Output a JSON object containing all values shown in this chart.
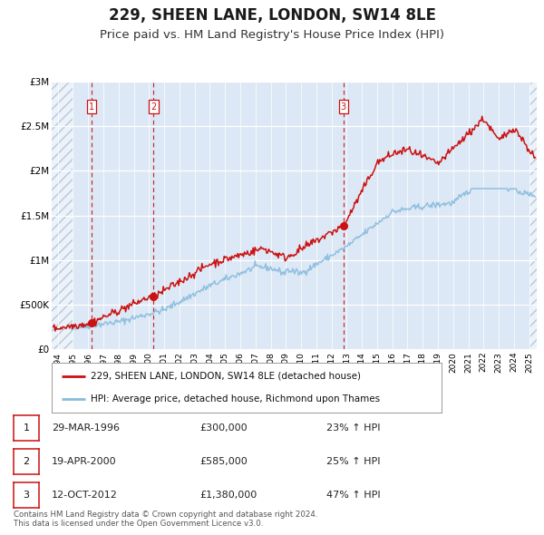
{
  "title": "229, SHEEN LANE, LONDON, SW14 8LE",
  "subtitle": "Price paid vs. HM Land Registry's House Price Index (HPI)",
  "title_fontsize": 12,
  "subtitle_fontsize": 9.5,
  "bg_color": "#f5f5f5",
  "plot_bg_color": "#dce8f5",
  "red_color": "#cc1111",
  "blue_color": "#88bbdd",
  "ylim": [
    0,
    3000000
  ],
  "yticks": [
    0,
    500000,
    1000000,
    1500000,
    2000000,
    2500000,
    3000000
  ],
  "ytick_labels": [
    "£0",
    "£500K",
    "£1M",
    "£1.5M",
    "£2M",
    "£2.5M",
    "£3M"
  ],
  "xlim_start": 1993.6,
  "xlim_end": 2025.5,
  "sale_dates": [
    1996.24,
    2000.3,
    2012.79
  ],
  "sale_prices": [
    300000,
    585000,
    1380000
  ],
  "sale_labels": [
    "1",
    "2",
    "3"
  ],
  "vline_dates": [
    1996.24,
    2000.3,
    2012.79
  ],
  "legend_label_red": "229, SHEEN LANE, LONDON, SW14 8LE (detached house)",
  "legend_label_blue": "HPI: Average price, detached house, Richmond upon Thames",
  "table_rows": [
    {
      "num": "1",
      "date": "29-MAR-1996",
      "price": "£300,000",
      "change": "23% ↑ HPI"
    },
    {
      "num": "2",
      "date": "19-APR-2000",
      "price": "£585,000",
      "change": "25% ↑ HPI"
    },
    {
      "num": "3",
      "date": "12-OCT-2012",
      "price": "£1,380,000",
      "change": "47% ↑ HPI"
    }
  ],
  "footer": "Contains HM Land Registry data © Crown copyright and database right 2024.\nThis data is licensed under the Open Government Licence v3.0."
}
